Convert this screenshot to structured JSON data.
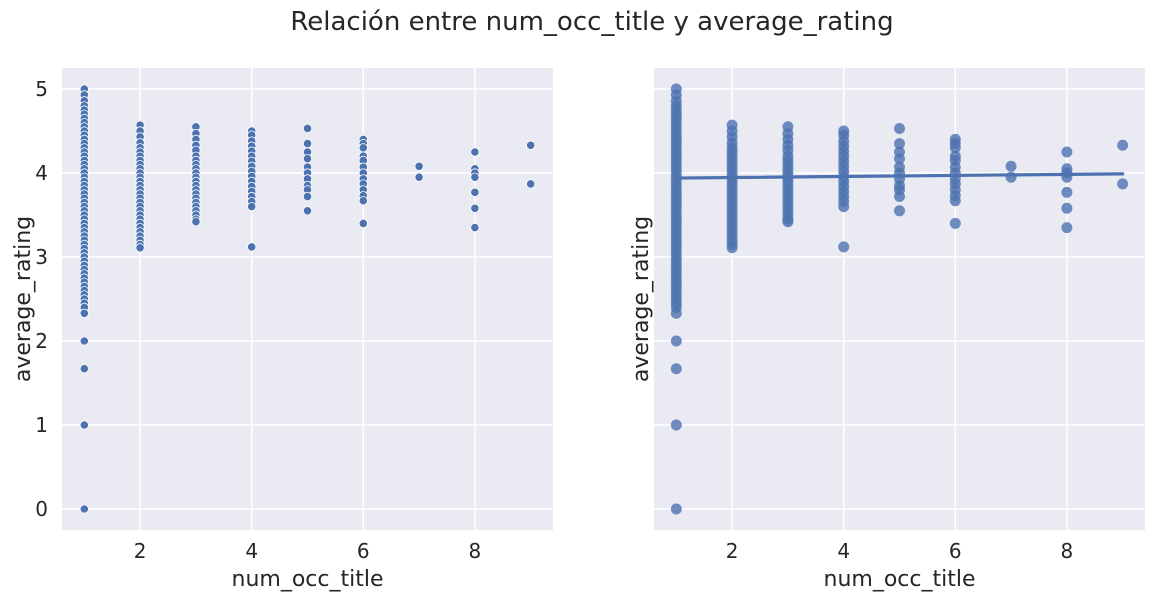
{
  "figure": {
    "suptitle": "Relación entre num_occ_title y average_rating"
  },
  "chart_data": [
    {
      "type": "scatter",
      "xlabel": "num_occ_title",
      "ylabel": "average_rating",
      "xlim": [
        0.6,
        9.4
      ],
      "ylim": [
        -0.25,
        5.25
      ],
      "xticks": [
        2,
        4,
        6,
        8
      ],
      "yticks": [
        0,
        1,
        2,
        3,
        4,
        5
      ],
      "grid": true,
      "background": "#eaeaf2",
      "point_color": "#4c72b0",
      "groups": [
        {
          "x": 1,
          "values": [
            5.0,
            4.93,
            4.86,
            4.8,
            4.75,
            4.7,
            4.65,
            4.6,
            4.55,
            4.5,
            4.45,
            4.4,
            4.35,
            4.3,
            4.25,
            4.2,
            4.15,
            4.1,
            4.05,
            4.0,
            3.95,
            3.9,
            3.85,
            3.8,
            3.75,
            3.7,
            3.65,
            3.6,
            3.55,
            3.5,
            3.45,
            3.4,
            3.35,
            3.3,
            3.25,
            3.2,
            3.15,
            3.1,
            3.05,
            3.0,
            2.95,
            2.9,
            2.85,
            2.8,
            2.75,
            2.7,
            2.65,
            2.6,
            2.55,
            2.5,
            2.45,
            2.4,
            2.33,
            2.0,
            1.67,
            1.0,
            0.0
          ]
        },
        {
          "x": 2,
          "values": [
            4.57,
            4.5,
            4.43,
            4.36,
            4.3,
            4.25,
            4.2,
            4.15,
            4.1,
            4.05,
            4.0,
            3.95,
            3.9,
            3.85,
            3.8,
            3.75,
            3.7,
            3.65,
            3.6,
            3.55,
            3.5,
            3.45,
            3.4,
            3.35,
            3.3,
            3.25,
            3.2,
            3.15,
            3.11
          ]
        },
        {
          "x": 3,
          "values": [
            4.55,
            4.47,
            4.4,
            4.33,
            4.27,
            4.2,
            4.15,
            4.1,
            4.05,
            4.0,
            3.95,
            3.9,
            3.85,
            3.8,
            3.75,
            3.7,
            3.65,
            3.6,
            3.55,
            3.5,
            3.45,
            3.42
          ]
        },
        {
          "x": 4,
          "values": [
            4.5,
            4.45,
            4.38,
            4.32,
            4.26,
            4.2,
            4.14,
            4.08,
            4.02,
            3.96,
            3.9,
            3.84,
            3.78,
            3.72,
            3.66,
            3.6,
            3.12
          ]
        },
        {
          "x": 5,
          "values": [
            4.53,
            4.35,
            4.25,
            4.17,
            4.07,
            4.0,
            3.93,
            3.85,
            3.8,
            3.72,
            3.55
          ]
        },
        {
          "x": 6,
          "values": [
            4.4,
            4.35,
            4.3,
            4.2,
            4.15,
            4.07,
            4.0,
            3.93,
            3.87,
            3.8,
            3.73,
            3.67,
            3.4
          ]
        },
        {
          "x": 7,
          "values": [
            4.08,
            3.95
          ]
        },
        {
          "x": 8,
          "values": [
            4.25,
            4.05,
            4.0,
            3.95,
            3.77,
            3.58,
            3.35
          ]
        },
        {
          "x": 9,
          "values": [
            4.33,
            3.87
          ]
        }
      ]
    },
    {
      "type": "scatter",
      "xlabel": "num_occ_title",
      "ylabel": "average_rating",
      "xlim": [
        0.6,
        9.4
      ],
      "ylim": [
        -0.25,
        5.25
      ],
      "xticks": [
        2,
        4,
        6,
        8
      ],
      "yticks": [
        0,
        1,
        2,
        3,
        4,
        5
      ],
      "show_ytick_labels": false,
      "grid": true,
      "background": "#eaeaf2",
      "point_color": "#4c72b0",
      "regression_line": {
        "x": [
          1,
          9
        ],
        "y": [
          3.94,
          3.99
        ],
        "color": "#4c72b0"
      },
      "groups": [
        {
          "x": 1,
          "values": [
            5.0,
            4.93,
            4.86,
            4.8,
            4.75,
            4.7,
            4.65,
            4.6,
            4.55,
            4.5,
            4.45,
            4.4,
            4.35,
            4.3,
            4.25,
            4.2,
            4.15,
            4.1,
            4.05,
            4.0,
            3.95,
            3.9,
            3.85,
            3.8,
            3.75,
            3.7,
            3.65,
            3.6,
            3.55,
            3.5,
            3.45,
            3.4,
            3.35,
            3.3,
            3.25,
            3.2,
            3.15,
            3.1,
            3.05,
            3.0,
            2.95,
            2.9,
            2.85,
            2.8,
            2.75,
            2.7,
            2.65,
            2.6,
            2.55,
            2.5,
            2.45,
            2.4,
            2.33,
            2.0,
            1.67,
            1.0,
            0.0
          ]
        },
        {
          "x": 2,
          "values": [
            4.57,
            4.5,
            4.43,
            4.36,
            4.3,
            4.25,
            4.2,
            4.15,
            4.1,
            4.05,
            4.0,
            3.95,
            3.9,
            3.85,
            3.8,
            3.75,
            3.7,
            3.65,
            3.6,
            3.55,
            3.5,
            3.45,
            3.4,
            3.35,
            3.3,
            3.25,
            3.2,
            3.15,
            3.11
          ]
        },
        {
          "x": 3,
          "values": [
            4.55,
            4.47,
            4.4,
            4.33,
            4.27,
            4.2,
            4.15,
            4.1,
            4.05,
            4.0,
            3.95,
            3.9,
            3.85,
            3.8,
            3.75,
            3.7,
            3.65,
            3.6,
            3.55,
            3.5,
            3.45,
            3.42
          ]
        },
        {
          "x": 4,
          "values": [
            4.5,
            4.45,
            4.38,
            4.32,
            4.26,
            4.2,
            4.14,
            4.08,
            4.02,
            3.96,
            3.9,
            3.84,
            3.78,
            3.72,
            3.66,
            3.6,
            3.12
          ]
        },
        {
          "x": 5,
          "values": [
            4.53,
            4.35,
            4.25,
            4.17,
            4.07,
            4.0,
            3.93,
            3.85,
            3.8,
            3.72,
            3.55
          ]
        },
        {
          "x": 6,
          "values": [
            4.4,
            4.35,
            4.3,
            4.2,
            4.15,
            4.07,
            4.0,
            3.93,
            3.87,
            3.8,
            3.73,
            3.67,
            3.4
          ]
        },
        {
          "x": 7,
          "values": [
            4.08,
            3.95
          ]
        },
        {
          "x": 8,
          "values": [
            4.25,
            4.05,
            4.0,
            3.95,
            3.77,
            3.58,
            3.35
          ]
        },
        {
          "x": 9,
          "values": [
            4.33,
            3.87
          ]
        }
      ]
    }
  ]
}
